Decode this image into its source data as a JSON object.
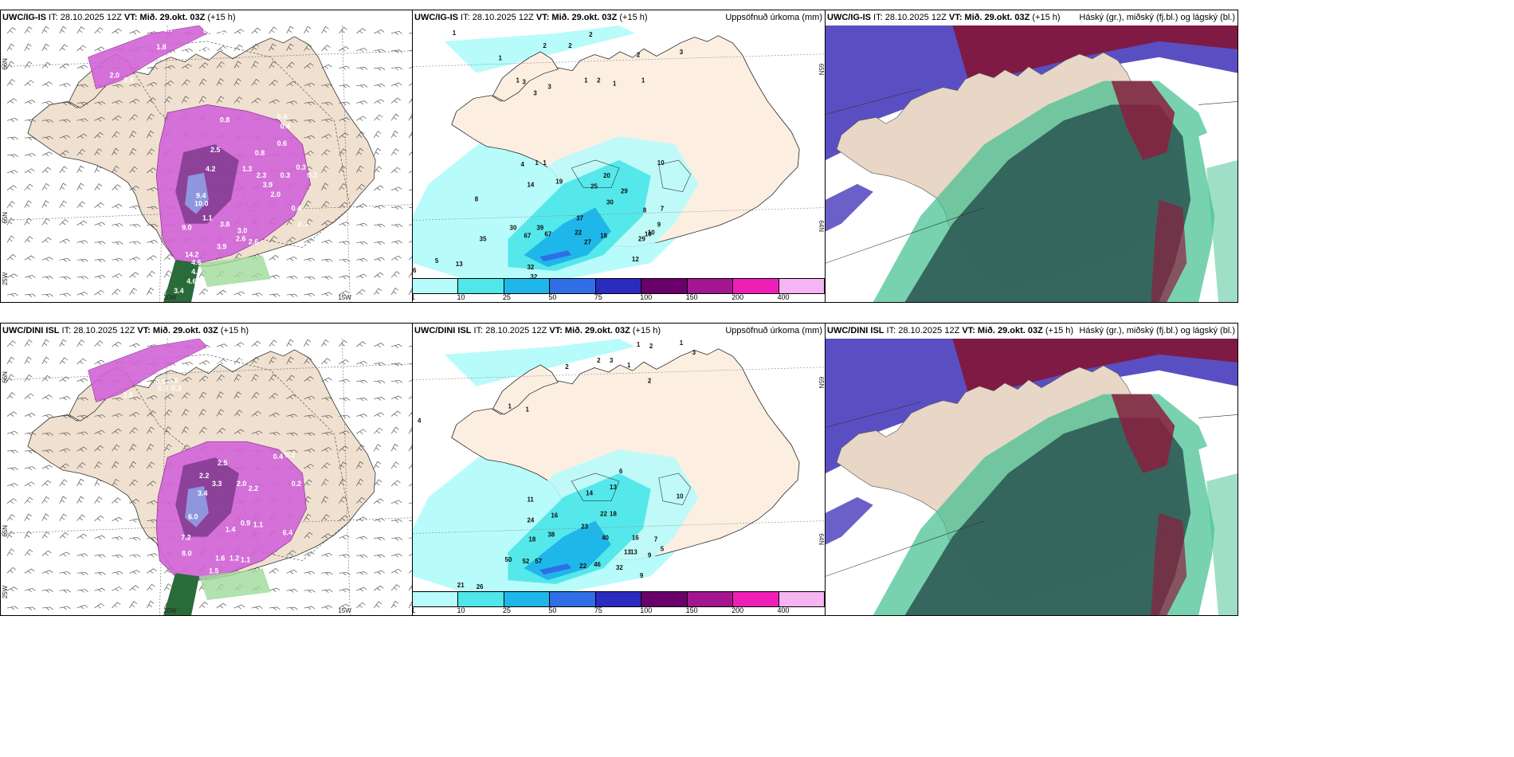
{
  "panels": [
    {
      "id": "r0c0",
      "header": {
        "model": "UWC/IG-IS",
        "it": " IT: 28.10.2025 12Z ",
        "vt_label": "VT:",
        "vt": " Mið. 29.okt. 03Z",
        "lead": " (+15 h)",
        "right": ""
      },
      "values": [
        "0.7",
        "0.9",
        "1.0",
        "1.8",
        "2.6",
        "2.0",
        "0.6",
        "0.8",
        "0.4",
        "0.4",
        "0.6",
        "2.5",
        "0.8",
        "4.2",
        "1.3",
        "2.3",
        "0.3",
        "0.3",
        "0.2",
        "9.4",
        "10.0",
        "1.1",
        "0.4",
        "0.4",
        "9.0",
        "3.8",
        "3.0",
        "2.6",
        "2.6",
        "14.2",
        "3.9",
        "4.6",
        "4.6",
        "4.6",
        "3.4",
        "3.9",
        "2.0"
      ],
      "axis_labels": [
        "66N",
        "65N",
        "25W",
        "20W",
        "15W"
      ]
    },
    {
      "id": "r0c1",
      "header": {
        "model": "UWC/IG-IS",
        "it": " IT: 28.10.2025 12Z ",
        "vt_label": "VT:",
        "vt": " Mið. 29.okt. 03Z",
        "lead": " (+15 h)",
        "right": "Uppsöfnuð úrkoma (mm)"
      },
      "values": [
        "1",
        "2",
        "2",
        "2",
        "2",
        "3",
        "1",
        "1",
        "1",
        "2",
        "1",
        "1",
        "3",
        "3",
        "3",
        "4",
        "1",
        "1",
        "14",
        "19",
        "20",
        "25",
        "29",
        "30",
        "37",
        "39",
        "30",
        "35",
        "67",
        "67",
        "22",
        "18",
        "10",
        "29",
        "27",
        "8",
        "10",
        "5",
        "13",
        "32",
        "32",
        "6",
        "10",
        "7",
        "8",
        "9",
        "12"
      ],
      "axis_labels": [
        "65N",
        "64N"
      ],
      "legend": [
        "1",
        "10",
        "25",
        "50",
        "75",
        "100",
        "150",
        "200",
        "400"
      ]
    },
    {
      "id": "r0c2",
      "header": {
        "model": "UWC/IG-IS",
        "it": " IT: 28.10.2025 12Z ",
        "vt_label": "VT:",
        "vt": " Mið. 29.okt. 03Z",
        "lead": " (+15 h)",
        "right": "Háský (gr.), miðský (fj.bl.) og lágský (bl.)"
      }
    },
    {
      "id": "r1c0",
      "header": {
        "model": "UWC/DINI ISL",
        "it": " IT: 28.10.2025 12Z ",
        "vt_label": "VT:",
        "vt": " Mið. 29.okt. 03Z",
        "lead": " (+15 h)",
        "right": ""
      },
      "values": [
        "0.9",
        "1.0",
        "0.3",
        "0.3",
        "1.6",
        "0.5",
        "0.6",
        "0.3",
        "0.3",
        "0.4",
        "0.3",
        "2.5",
        "2.2",
        "3.3",
        "2.0",
        "3.4",
        "2.2",
        "0.2",
        "6.0",
        "0.9",
        "1.1",
        "7.2",
        "1.4",
        "6.4",
        "8.0",
        "1.6",
        "1.2",
        "1.1",
        "1.5",
        "3.1",
        "1.1"
      ],
      "axis_labels": [
        "66N",
        "65N",
        "25W",
        "20W",
        "15W"
      ]
    },
    {
      "id": "r1c1",
      "header": {
        "model": "UWC/DINI ISL",
        "it": " IT: 28.10.2025 12Z ",
        "vt_label": "VT:",
        "vt": " Mið. 29.okt. 03Z",
        "lead": " (+15 h)",
        "right": "Uppsöfnuð úrkoma (mm)"
      },
      "values": [
        "1",
        "2",
        "1",
        "3",
        "2",
        "2",
        "3",
        "1",
        "4",
        "1",
        "1",
        "2",
        "6",
        "13",
        "14",
        "10",
        "11",
        "16",
        "24",
        "23",
        "22",
        "18",
        "18",
        "38",
        "40",
        "16",
        "13",
        "13",
        "50",
        "52",
        "57",
        "22",
        "46",
        "32",
        "7",
        "9",
        "5",
        "21",
        "26",
        "9"
      ],
      "axis_labels": [
        "65N",
        "64N"
      ],
      "legend": [
        "1",
        "10",
        "25",
        "50",
        "75",
        "100",
        "150",
        "200",
        "400"
      ]
    },
    {
      "id": "r1c2",
      "header": {
        "model": "UWC/DINI ISL",
        "it": " IT: 28.10.2025 12Z ",
        "vt_label": "VT:",
        "vt": " Mið. 29.okt. 03Z",
        "lead": " (+15 h)",
        "right": "Háský (gr.), miðský (fj.bl.) og lágský (bl.)"
      }
    }
  ],
  "legend_colors": [
    "#b8fbfb",
    "#4fe7ea",
    "#1fb7ea",
    "#2f6ee6",
    "#2b2bbf",
    "#6a006a",
    "#a3168f",
    "#ee1fb7",
    "#f5b4f2"
  ]
}
